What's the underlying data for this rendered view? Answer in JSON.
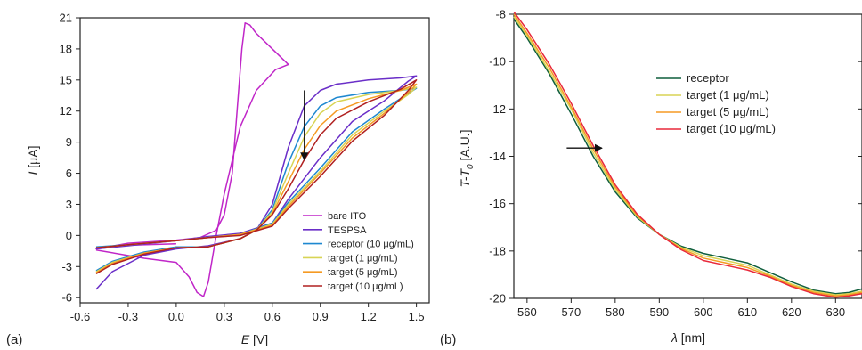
{
  "panel_labels": [
    "(a)",
    "(b)"
  ],
  "chart_data": [
    {
      "type": "line",
      "panel": "(a)",
      "xlabel": {
        "symbol": "E",
        "unit": "[V]"
      },
      "ylabel": {
        "symbol": "I",
        "unit": "[μA]"
      },
      "xlim": [
        -0.6,
        1.58
      ],
      "ylim": [
        -6.5,
        21
      ],
      "xticks": [
        -0.6,
        -0.3,
        0.0,
        0.3,
        0.6,
        0.9,
        1.2,
        1.5
      ],
      "xtick_labels": [
        "-0.6",
        "-0.3",
        "0.0",
        "0.3",
        "0.6",
        "0.9",
        "1.2",
        "1.5"
      ],
      "yticks": [
        -6,
        -3,
        0,
        3,
        6,
        9,
        12,
        15,
        18,
        21
      ],
      "ytick_labels": [
        "-6",
        "-3",
        "0",
        "3",
        "6",
        "9",
        "12",
        "15",
        "18",
        "21"
      ],
      "legend_position": "bottom-right",
      "annotation_arrow": {
        "from": [
          0.8,
          14
        ],
        "to": [
          0.8,
          7.3
        ]
      },
      "series": [
        {
          "name": "bare ITO",
          "color": "#c026c8",
          "points": [
            [
              0,
              -0.8
            ],
            [
              -0.3,
              -0.95
            ],
            [
              -0.5,
              -1.3
            ],
            [
              -0.3,
              -0.75
            ],
            [
              0.0,
              -0.45
            ],
            [
              0.15,
              -0.2
            ],
            [
              0.25,
              0.5
            ],
            [
              0.3,
              2.0
            ],
            [
              0.35,
              6.0
            ],
            [
              0.38,
              12.0
            ],
            [
              0.41,
              18.0
            ],
            [
              0.43,
              20.5
            ],
            [
              0.46,
              20.3
            ],
            [
              0.5,
              19.5
            ],
            [
              0.6,
              18.0
            ],
            [
              0.68,
              16.8
            ],
            [
              0.7,
              16.5
            ],
            [
              0.62,
              16.0
            ],
            [
              0.5,
              14.0
            ],
            [
              0.4,
              10.5
            ],
            [
              0.3,
              4.0
            ],
            [
              0.25,
              0.0
            ],
            [
              0.2,
              -4.5
            ],
            [
              0.17,
              -5.9
            ],
            [
              0.13,
              -5.5
            ],
            [
              0.08,
              -4.0
            ],
            [
              0.0,
              -2.6
            ],
            [
              -0.2,
              -2.2
            ],
            [
              -0.5,
              -1.4
            ]
          ]
        },
        {
          "name": "TESPSA",
          "color": "#6a2ec8",
          "points": [
            [
              -0.5,
              -5.2
            ],
            [
              -0.4,
              -3.5
            ],
            [
              -0.2,
              -1.9
            ],
            [
              0.0,
              -1.3
            ],
            [
              0.2,
              -1.0
            ],
            [
              0.4,
              -0.3
            ],
            [
              0.5,
              0.5
            ],
            [
              0.6,
              3.0
            ],
            [
              0.7,
              8.5
            ],
            [
              0.8,
              12.5
            ],
            [
              0.9,
              14.0
            ],
            [
              1.0,
              14.6
            ],
            [
              1.2,
              15.0
            ],
            [
              1.4,
              15.2
            ],
            [
              1.5,
              15.4
            ],
            [
              1.45,
              14.9
            ],
            [
              1.3,
              13.0
            ],
            [
              1.1,
              11.0
            ],
            [
              0.9,
              7.5
            ],
            [
              0.7,
              3.5
            ],
            [
              0.6,
              1.2
            ],
            [
              0.4,
              0.2
            ],
            [
              0.2,
              -0.1
            ],
            [
              0.0,
              -0.5
            ],
            [
              -0.3,
              -1.0
            ],
            [
              -0.5,
              -1.3
            ]
          ]
        },
        {
          "name": "receptor (10 μg/mL)",
          "color": "#1e88d0",
          "points": [
            [
              -0.5,
              -3.4
            ],
            [
              -0.4,
              -2.5
            ],
            [
              -0.2,
              -1.6
            ],
            [
              0.0,
              -1.1
            ],
            [
              0.2,
              -1.1
            ],
            [
              0.4,
              -0.3
            ],
            [
              0.5,
              0.5
            ],
            [
              0.6,
              2.5
            ],
            [
              0.7,
              7.0
            ],
            [
              0.8,
              10.5
            ],
            [
              0.9,
              12.5
            ],
            [
              1.0,
              13.3
            ],
            [
              1.2,
              13.8
            ],
            [
              1.4,
              14.0
            ],
            [
              1.5,
              14.2
            ],
            [
              1.45,
              13.7
            ],
            [
              1.3,
              12.2
            ],
            [
              1.1,
              10.0
            ],
            [
              0.9,
              6.5
            ],
            [
              0.7,
              3.2
            ],
            [
              0.6,
              1.2
            ],
            [
              0.4,
              0.1
            ],
            [
              0.2,
              -0.2
            ],
            [
              0.0,
              -0.5
            ],
            [
              -0.3,
              -0.9
            ],
            [
              -0.5,
              -1.1
            ]
          ]
        },
        {
          "name": "target (1 μg/mL)",
          "color": "#d8d455",
          "points": [
            [
              -0.5,
              -3.5
            ],
            [
              -0.4,
              -2.6
            ],
            [
              -0.2,
              -1.7
            ],
            [
              0.0,
              -1.2
            ],
            [
              0.2,
              -1.1
            ],
            [
              0.4,
              -0.3
            ],
            [
              0.5,
              0.5
            ],
            [
              0.6,
              2.3
            ],
            [
              0.7,
              6.0
            ],
            [
              0.8,
              9.5
            ],
            [
              0.9,
              11.8
            ],
            [
              1.0,
              12.9
            ],
            [
              1.2,
              13.6
            ],
            [
              1.4,
              14.0
            ],
            [
              1.5,
              14.3
            ],
            [
              1.45,
              13.6
            ],
            [
              1.3,
              12.0
            ],
            [
              1.1,
              9.7
            ],
            [
              0.9,
              6.2
            ],
            [
              0.7,
              3.0
            ],
            [
              0.6,
              1.1
            ],
            [
              0.4,
              0.1
            ],
            [
              0.2,
              -0.2
            ],
            [
              0.0,
              -0.5
            ],
            [
              -0.3,
              -0.9
            ],
            [
              -0.5,
              -1.2
            ]
          ]
        },
        {
          "name": "target (5 μg/mL)",
          "color": "#f59a23",
          "points": [
            [
              -0.5,
              -3.6
            ],
            [
              -0.4,
              -2.7
            ],
            [
              -0.2,
              -1.7
            ],
            [
              0.0,
              -1.2
            ],
            [
              0.2,
              -1.1
            ],
            [
              0.4,
              -0.3
            ],
            [
              0.5,
              0.5
            ],
            [
              0.6,
              2.1
            ],
            [
              0.7,
              5.2
            ],
            [
              0.8,
              8.3
            ],
            [
              0.9,
              10.6
            ],
            [
              1.0,
              12.0
            ],
            [
              1.2,
              13.2
            ],
            [
              1.4,
              14.0
            ],
            [
              1.5,
              14.6
            ],
            [
              1.45,
              13.8
            ],
            [
              1.3,
              11.8
            ],
            [
              1.1,
              9.4
            ],
            [
              0.9,
              6.0
            ],
            [
              0.7,
              2.8
            ],
            [
              0.6,
              1.0
            ],
            [
              0.4,
              0.1
            ],
            [
              0.2,
              -0.2
            ],
            [
              0.0,
              -0.5
            ],
            [
              -0.3,
              -0.9
            ],
            [
              -0.5,
              -1.2
            ]
          ]
        },
        {
          "name": "target (10 μg/mL)",
          "color": "#b02020",
          "points": [
            [
              -0.5,
              -3.7
            ],
            [
              -0.4,
              -2.8
            ],
            [
              -0.2,
              -1.8
            ],
            [
              0.0,
              -1.2
            ],
            [
              0.2,
              -1.1
            ],
            [
              0.4,
              -0.3
            ],
            [
              0.5,
              0.5
            ],
            [
              0.6,
              2.0
            ],
            [
              0.7,
              4.5
            ],
            [
              0.8,
              7.3
            ],
            [
              0.9,
              9.7
            ],
            [
              1.0,
              11.3
            ],
            [
              1.2,
              12.9
            ],
            [
              1.4,
              14.1
            ],
            [
              1.5,
              15.0
            ],
            [
              1.45,
              14.0
            ],
            [
              1.3,
              11.6
            ],
            [
              1.1,
              9.1
            ],
            [
              0.9,
              5.7
            ],
            [
              0.7,
              2.6
            ],
            [
              0.6,
              0.9
            ],
            [
              0.4,
              0.0
            ],
            [
              0.2,
              -0.2
            ],
            [
              0.0,
              -0.5
            ],
            [
              -0.3,
              -0.9
            ],
            [
              -0.5,
              -1.2
            ]
          ]
        }
      ]
    },
    {
      "type": "line",
      "panel": "(b)",
      "xlabel": {
        "symbol": "λ",
        "unit": "[nm]"
      },
      "ylabel": {
        "main": "T-T",
        "sub": "0",
        "unit": "[A.U.]"
      },
      "xlim": [
        557,
        636
      ],
      "ylim": [
        -20,
        -8
      ],
      "xticks": [
        560,
        570,
        580,
        590,
        600,
        610,
        620,
        630
      ],
      "xtick_labels": [
        "560",
        "570",
        "580",
        "590",
        "600",
        "610",
        "620",
        "630"
      ],
      "yticks": [
        -20,
        -18,
        -16,
        -14,
        -12,
        -10,
        -8
      ],
      "ytick_labels": [
        "-20",
        "-18",
        "-16",
        "-14",
        "-12",
        "-10",
        "-8"
      ],
      "legend_position": "top-right",
      "annotation_arrow": {
        "from": [
          569,
          -13.65
        ],
        "to": [
          577,
          -13.65
        ]
      },
      "series": [
        {
          "name": "receptor",
          "color": "#0f5e3c",
          "points": [
            [
              557,
              -8.2
            ],
            [
              560,
              -9.0
            ],
            [
              565,
              -10.5
            ],
            [
              570,
              -12.2
            ],
            [
              575,
              -14.0
            ],
            [
              580,
              -15.5
            ],
            [
              585,
              -16.6
            ],
            [
              590,
              -17.3
            ],
            [
              595,
              -17.8
            ],
            [
              600,
              -18.1
            ],
            [
              605,
              -18.3
            ],
            [
              610,
              -18.5
            ],
            [
              615,
              -18.9
            ],
            [
              620,
              -19.3
            ],
            [
              625,
              -19.65
            ],
            [
              630,
              -19.8
            ],
            [
              633,
              -19.75
            ],
            [
              636,
              -19.6
            ]
          ]
        },
        {
          "name": "target (1 μg/mL)",
          "color": "#d8d455",
          "points": [
            [
              557,
              -8.1
            ],
            [
              560,
              -8.9
            ],
            [
              565,
              -10.4
            ],
            [
              570,
              -12.0
            ],
            [
              575,
              -13.85
            ],
            [
              580,
              -15.4
            ],
            [
              585,
              -16.55
            ],
            [
              590,
              -17.3
            ],
            [
              595,
              -17.85
            ],
            [
              600,
              -18.2
            ],
            [
              605,
              -18.4
            ],
            [
              610,
              -18.6
            ],
            [
              615,
              -19.0
            ],
            [
              620,
              -19.4
            ],
            [
              625,
              -19.7
            ],
            [
              630,
              -19.85
            ],
            [
              633,
              -19.8
            ],
            [
              636,
              -19.7
            ]
          ]
        },
        {
          "name": "target (5 μg/mL)",
          "color": "#f59a23",
          "points": [
            [
              557,
              -8.0
            ],
            [
              560,
              -8.8
            ],
            [
              565,
              -10.25
            ],
            [
              570,
              -11.9
            ],
            [
              575,
              -13.7
            ],
            [
              580,
              -15.3
            ],
            [
              585,
              -16.5
            ],
            [
              590,
              -17.3
            ],
            [
              595,
              -17.9
            ],
            [
              600,
              -18.3
            ],
            [
              605,
              -18.5
            ],
            [
              610,
              -18.7
            ],
            [
              615,
              -19.05
            ],
            [
              620,
              -19.45
            ],
            [
              625,
              -19.75
            ],
            [
              630,
              -19.9
            ],
            [
              633,
              -19.85
            ],
            [
              636,
              -19.75
            ]
          ]
        },
        {
          "name": "target (10 μg/mL)",
          "color": "#e8283a",
          "points": [
            [
              557,
              -7.9
            ],
            [
              560,
              -8.65
            ],
            [
              565,
              -10.1
            ],
            [
              570,
              -11.75
            ],
            [
              575,
              -13.55
            ],
            [
              580,
              -15.2
            ],
            [
              585,
              -16.45
            ],
            [
              590,
              -17.3
            ],
            [
              595,
              -17.95
            ],
            [
              600,
              -18.4
            ],
            [
              605,
              -18.6
            ],
            [
              610,
              -18.8
            ],
            [
              615,
              -19.1
            ],
            [
              620,
              -19.5
            ],
            [
              625,
              -19.8
            ],
            [
              630,
              -19.95
            ],
            [
              633,
              -19.9
            ],
            [
              636,
              -19.8
            ]
          ]
        }
      ]
    }
  ]
}
